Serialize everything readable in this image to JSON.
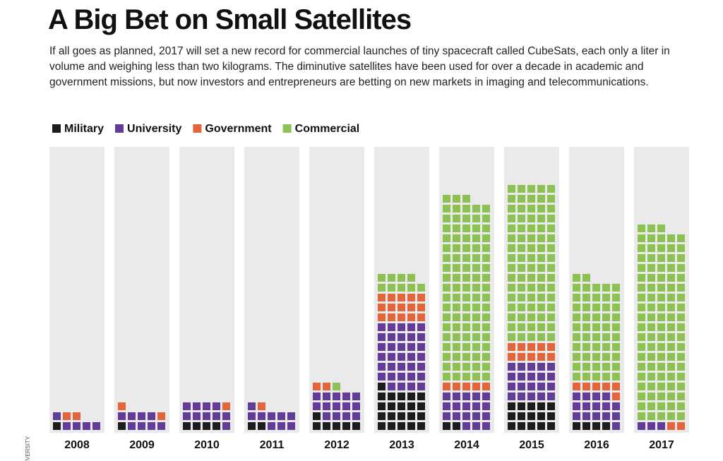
{
  "title": "A Big Bet on Small Satellites",
  "subtitle": "If all goes as planned, 2017 will set a new record for commercial launches of tiny spacecraft called CubeSats, each only a liter in volume and weighing less than two kilograms. The diminutive satellites have been used for over a decade in academic and government missions, but now investors and entrepreneurs are betting on new markets in imaging and telecommunications.",
  "credit": "IVERSITY",
  "chart_data": {
    "type": "waffle",
    "categories": [
      "2008",
      "2009",
      "2010",
      "2011",
      "2012",
      "2013",
      "2014",
      "2015",
      "2016",
      "2017"
    ],
    "series": [
      {
        "name": "Military",
        "color": "#1c1c1c",
        "values": [
          1,
          1,
          4,
          2,
          6,
          21,
          2,
          15,
          4,
          0
        ]
      },
      {
        "name": "University",
        "color": "#623c98",
        "values": [
          5,
          8,
          10,
          9,
          14,
          34,
          18,
          20,
          15,
          3
        ]
      },
      {
        "name": "Government",
        "color": "#e4653a",
        "values": [
          2,
          2,
          1,
          1,
          2,
          15,
          5,
          10,
          6,
          2
        ]
      },
      {
        "name": "Commercial",
        "color": "#8dc153",
        "values": [
          0,
          0,
          0,
          0,
          1,
          9,
          93,
          80,
          52,
          98
        ]
      }
    ]
  }
}
